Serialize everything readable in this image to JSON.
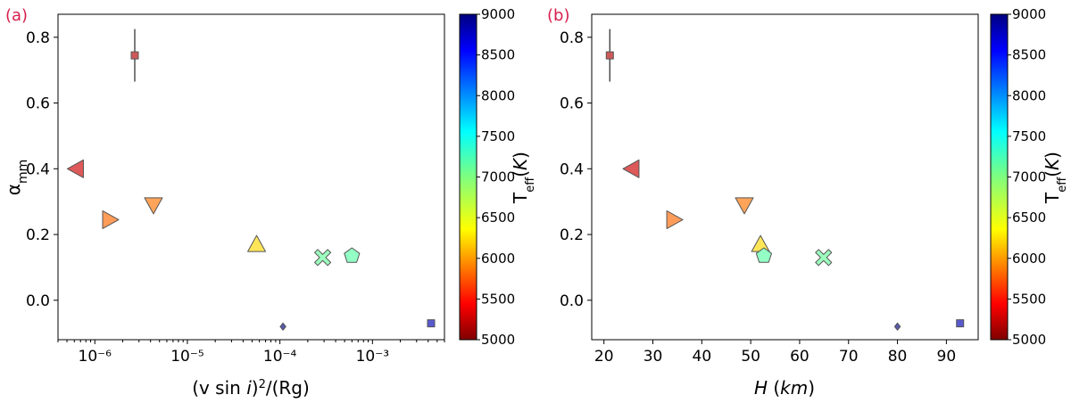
{
  "chart_data": [
    {
      "panel_label": "(a)",
      "type": "scatter",
      "xscale": "log",
      "xlabel": "(v sin i)²/(Rg)",
      "ylabel": "αmm",
      "xlim": [
        4e-07,
        0.006
      ],
      "ylim": [
        -0.12,
        0.87
      ],
      "xticks": [
        "10⁻⁶",
        "10⁻⁵",
        "10⁻⁴",
        "10⁻³"
      ],
      "xtick_values": [
        1e-06,
        1e-05,
        0.0001,
        0.001
      ],
      "yticks": [
        "0.0",
        "0.2",
        "0.4",
        "0.6",
        "0.8"
      ],
      "ytick_values": [
        0.0,
        0.2,
        0.4,
        0.6,
        0.8
      ],
      "points": [
        {
          "x": 2.7e-06,
          "y": 0.745,
          "marker": "square",
          "teff": 5200,
          "yerr": 0.08
        },
        {
          "x": 6.3e-07,
          "y": 0.4,
          "marker": "triangle-left",
          "teff": 5300
        },
        {
          "x": 1.45e-06,
          "y": 0.245,
          "marker": "triangle-right",
          "teff": 5900
        },
        {
          "x": 4.3e-06,
          "y": 0.29,
          "marker": "triangle-down",
          "teff": 5950
        },
        {
          "x": 5.6e-05,
          "y": 0.17,
          "marker": "triangle-up",
          "teff": 6350
        },
        {
          "x": 0.00029,
          "y": 0.13,
          "marker": "x",
          "teff": 7100
        },
        {
          "x": 0.0006,
          "y": 0.135,
          "marker": "pentagon",
          "teff": 7150
        },
        {
          "x": 0.000108,
          "y": -0.08,
          "marker": "diamond",
          "teff": 9000
        },
        {
          "x": 0.0043,
          "y": -0.07,
          "marker": "square",
          "teff": 8800
        }
      ],
      "colorbar": {
        "label": "Teff(K)",
        "range": [
          5000,
          9000
        ],
        "ticks": [
          "5000",
          "5500",
          "6000",
          "6500",
          "7000",
          "7500",
          "8000",
          "8500",
          "9000"
        ],
        "tick_values": [
          5000,
          5500,
          6000,
          6500,
          7000,
          7500,
          8000,
          8500,
          9000
        ],
        "colormap": "jet_r"
      }
    },
    {
      "panel_label": "(b)",
      "type": "scatter",
      "xscale": "linear",
      "xlabel": "H (km)",
      "ylabel": "",
      "xlim": [
        17.5,
        96.5
      ],
      "ylim": [
        -0.12,
        0.87
      ],
      "xticks": [
        "20",
        "30",
        "40",
        "50",
        "60",
        "70",
        "80",
        "90"
      ],
      "xtick_values": [
        20,
        30,
        40,
        50,
        60,
        70,
        80,
        90
      ],
      "yticks": [
        "0.0",
        "0.2",
        "0.4",
        "0.6",
        "0.8"
      ],
      "ytick_values": [
        0.0,
        0.2,
        0.4,
        0.6,
        0.8
      ],
      "points": [
        {
          "x": 21.2,
          "y": 0.745,
          "marker": "square",
          "teff": 5200,
          "yerr": 0.08
        },
        {
          "x": 25.7,
          "y": 0.4,
          "marker": "triangle-left",
          "teff": 5300
        },
        {
          "x": 34.3,
          "y": 0.245,
          "marker": "triangle-right",
          "teff": 5900
        },
        {
          "x": 48.7,
          "y": 0.29,
          "marker": "triangle-down",
          "teff": 5950
        },
        {
          "x": 52.0,
          "y": 0.17,
          "marker": "triangle-up",
          "teff": 6350
        },
        {
          "x": 52.7,
          "y": 0.135,
          "marker": "pentagon",
          "teff": 7150
        },
        {
          "x": 64.9,
          "y": 0.13,
          "marker": "x",
          "teff": 7100
        },
        {
          "x": 80.0,
          "y": -0.08,
          "marker": "diamond",
          "teff": 9000
        },
        {
          "x": 92.8,
          "y": -0.07,
          "marker": "square",
          "teff": 8800
        }
      ],
      "colorbar": {
        "label": "Teff(K)",
        "range": [
          5000,
          9000
        ],
        "ticks": [
          "5000",
          "5500",
          "6000",
          "6500",
          "7000",
          "7500",
          "8000",
          "8500",
          "9000"
        ],
        "tick_values": [
          5000,
          5500,
          6000,
          6500,
          7000,
          7500,
          8000,
          8500,
          9000
        ],
        "colormap": "jet_r"
      }
    }
  ]
}
